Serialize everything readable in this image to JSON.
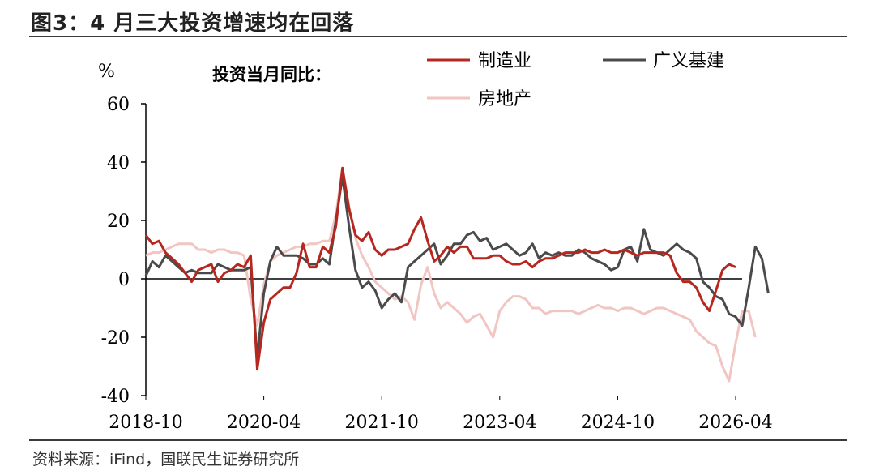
{
  "figure": {
    "title": "图3：4 月三大投资增速均在回落",
    "source": "资料来源：iFind，国联民生证券研究所"
  },
  "chart_data": {
    "type": "line",
    "subtitle": "投资当月同比：",
    "y_unit": "%",
    "ylim": [
      -40,
      60
    ],
    "y_ticks": [
      60,
      40,
      20,
      0,
      -20,
      -40
    ],
    "x_tick_labels": [
      "2018-10",
      "2020-04",
      "2021-10",
      "2023-04",
      "2024-10",
      "2026-04"
    ],
    "x_start": "2018-10",
    "x_end": "2026-04",
    "grid": false,
    "legend_position": "top",
    "series": [
      {
        "name": "制造业",
        "color": "#b5271f",
        "values": [
          15,
          12,
          13,
          9,
          7,
          5,
          2,
          -1,
          3,
          4,
          5,
          -1,
          2,
          3,
          5,
          4,
          8,
          -31,
          -15,
          -7,
          -5,
          -3,
          -3,
          2,
          12,
          4,
          4,
          11,
          9,
          18,
          38,
          24,
          15,
          13,
          16,
          10,
          8,
          10,
          10,
          11,
          12,
          17,
          21,
          13,
          6,
          8,
          11,
          9,
          11,
          11,
          7,
          7,
          7,
          8,
          8,
          6,
          5,
          5,
          6,
          4,
          6,
          7,
          7,
          8,
          9,
          9,
          9,
          10,
          9,
          9,
          10,
          9,
          9,
          10,
          9,
          8,
          9,
          9,
          9,
          9,
          8,
          2,
          -1,
          -1,
          -3,
          -8,
          -11,
          -4,
          3,
          5,
          4
        ]
      },
      {
        "name": "广义基建",
        "color": "#4a4a4a",
        "values": [
          1,
          6,
          4,
          8,
          6,
          4,
          2,
          3,
          2,
          2,
          2,
          5,
          4,
          3,
          3,
          3,
          4,
          -27,
          -5,
          6,
          11,
          8,
          8,
          8,
          7,
          5,
          5,
          7,
          5,
          20,
          35,
          18,
          3,
          -3,
          -1,
          -4,
          -10,
          -7,
          -5,
          -8,
          4,
          6,
          8,
          10,
          12,
          5,
          8,
          12,
          12,
          15,
          16,
          13,
          14,
          10,
          11,
          12,
          10,
          8,
          9,
          12,
          7,
          9,
          8,
          9,
          8,
          8,
          10,
          9,
          7,
          6,
          5,
          3,
          4,
          10,
          11,
          6,
          17,
          10,
          9,
          8,
          10,
          12,
          10,
          9,
          7,
          -1,
          -3,
          -6,
          -7,
          -12,
          -13,
          -16,
          -3,
          11,
          7,
          -5
        ]
      },
      {
        "name": "房地产",
        "color": "#f1c6c2",
        "values": [
          8,
          9,
          9,
          10,
          11,
          12,
          12,
          12,
          10,
          10,
          9,
          10,
          10,
          9,
          9,
          8,
          -7,
          -16,
          -2,
          6,
          8,
          9,
          10,
          11,
          11,
          12,
          12,
          13,
          13,
          22,
          38,
          25,
          14,
          8,
          4,
          -1,
          -3,
          -5,
          -7,
          -6,
          -8,
          -14,
          -2,
          4,
          -5,
          -10,
          -8,
          -10,
          -12,
          -15,
          -13,
          -12,
          -16,
          -20,
          -11,
          -8,
          -6,
          -6,
          -7,
          -10,
          -10,
          -12,
          -11,
          -11,
          -11,
          -11,
          -12,
          -11,
          -10,
          -9,
          -10,
          -10,
          -11,
          -10,
          -10,
          -11,
          -12,
          -11,
          -10,
          -10,
          -11,
          -12,
          -13,
          -14,
          -18,
          -20,
          -22,
          -23,
          -30,
          -35,
          -22,
          -11,
          -11,
          -20
        ]
      }
    ]
  }
}
